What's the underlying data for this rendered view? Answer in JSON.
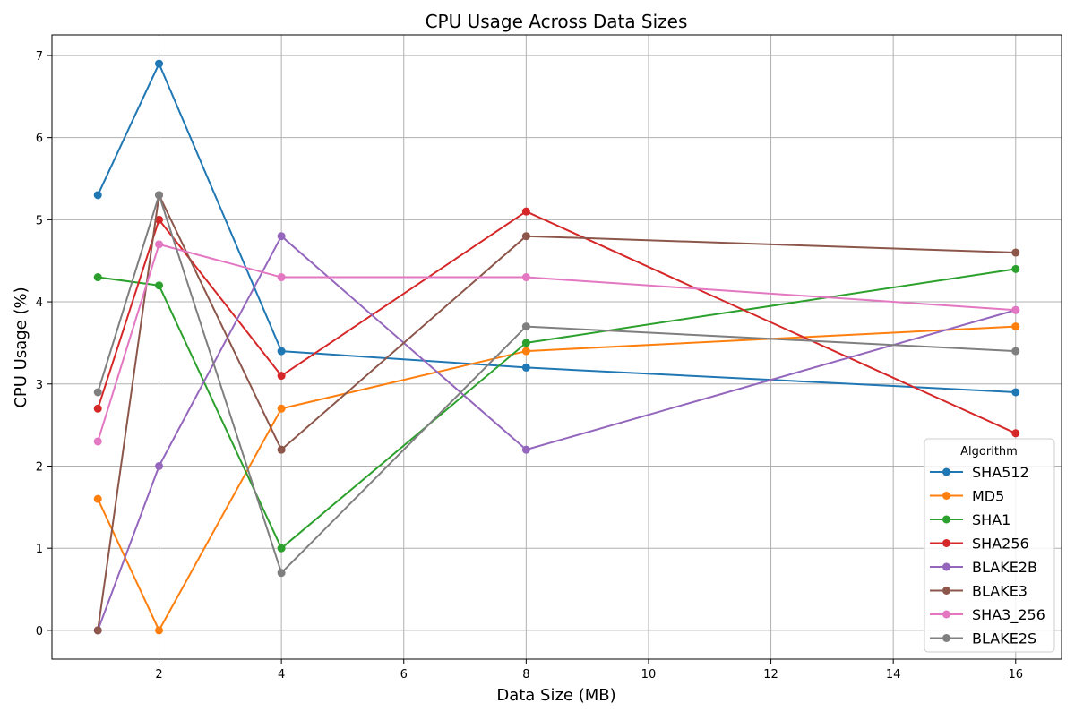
{
  "chart_data": {
    "type": "line",
    "title": "CPU Usage Across Data Sizes",
    "xlabel": "Data Size (MB)",
    "ylabel": "CPU Usage (%)",
    "x": [
      1,
      2,
      4,
      8,
      16
    ],
    "xlim": [
      0.25,
      16.75
    ],
    "ylim": [
      -0.35,
      7.25
    ],
    "xticks": [
      2,
      4,
      6,
      8,
      10,
      12,
      14,
      16
    ],
    "yticks": [
      0,
      1,
      2,
      3,
      4,
      5,
      6,
      7
    ],
    "grid": true,
    "legend": {
      "title": "Algorithm",
      "placement": "bottom-right"
    },
    "series": [
      {
        "name": "SHA512",
        "color": "#1f77b4",
        "values": [
          5.3,
          6.9,
          3.4,
          3.2,
          2.9
        ]
      },
      {
        "name": "MD5",
        "color": "#ff7f0e",
        "values": [
          1.6,
          0.0,
          2.7,
          3.4,
          3.7
        ]
      },
      {
        "name": "SHA1",
        "color": "#2ca02c",
        "values": [
          4.3,
          4.2,
          1.0,
          3.5,
          4.4
        ]
      },
      {
        "name": "SHA256",
        "color": "#d62728",
        "values": [
          2.7,
          5.0,
          3.1,
          5.1,
          2.4
        ]
      },
      {
        "name": "BLAKE2B",
        "color": "#9467bd",
        "values": [
          0.0,
          2.0,
          4.8,
          2.2,
          3.9
        ]
      },
      {
        "name": "BLAKE3",
        "color": "#8c564b",
        "values": [
          0.0,
          5.3,
          2.2,
          4.8,
          4.6
        ]
      },
      {
        "name": "SHA3_256",
        "color": "#e377c2",
        "values": [
          2.3,
          4.7,
          4.3,
          4.3,
          3.9
        ]
      },
      {
        "name": "BLAKE2S",
        "color": "#7f7f7f",
        "values": [
          2.9,
          5.3,
          0.7,
          3.7,
          3.4
        ]
      }
    ]
  }
}
